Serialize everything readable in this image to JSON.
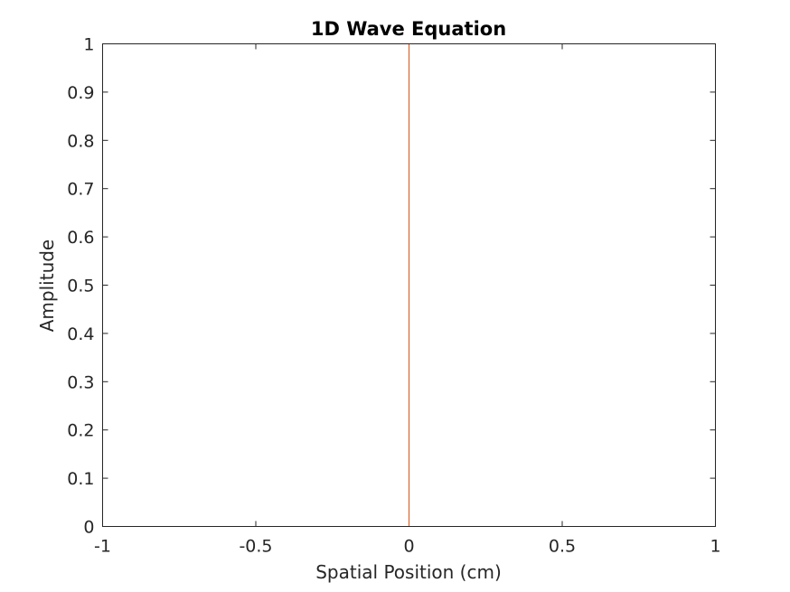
{
  "chart_data": {
    "type": "line",
    "title": "1D Wave Equation",
    "xlabel": "Spatial Position (cm)",
    "ylabel": "Amplitude",
    "xlim": [
      -1,
      1
    ],
    "ylim": [
      0,
      1
    ],
    "xticks": [
      -1,
      -0.5,
      0,
      0.5,
      1
    ],
    "xtick_labels": [
      "-1",
      "-0.5",
      "0",
      "0.5",
      "1"
    ],
    "yticks": [
      0,
      0.1,
      0.2,
      0.3,
      0.4,
      0.5,
      0.6,
      0.7,
      0.8,
      0.9,
      1
    ],
    "ytick_labels": [
      "0",
      "0.1",
      "0.2",
      "0.3",
      "0.4",
      "0.5",
      "0.6",
      "0.7",
      "0.8",
      "0.9",
      "1"
    ],
    "grid": false,
    "box": true,
    "series": [
      {
        "color": "#d95319",
        "x": [
          0,
          0
        ],
        "y": [
          0,
          1
        ]
      }
    ]
  }
}
